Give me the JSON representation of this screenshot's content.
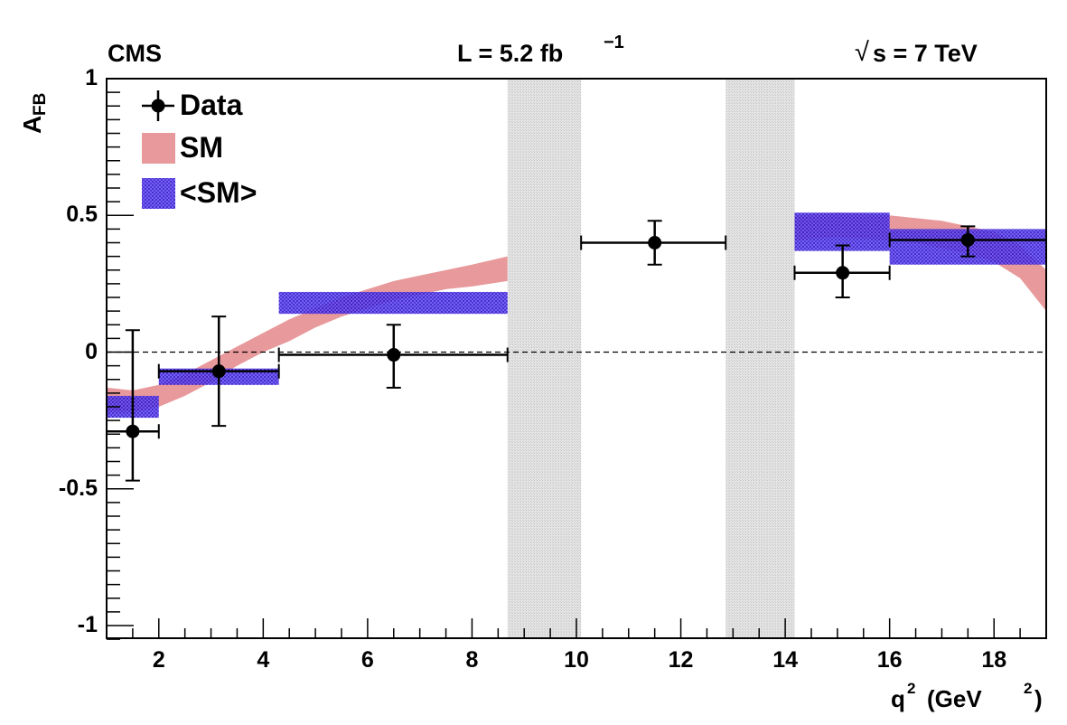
{
  "chart_data": {
    "type": "scatter",
    "header": {
      "experiment": "CMS",
      "luminosity": "L = 5.2 fb",
      "luminosity_exp": "−1",
      "energy_root": "√",
      "energy_text": "s = 7 TeV"
    },
    "xlabel": "q",
    "xlabel_exp": "2",
    "xlabel_units": "(GeV",
    "xlabel_units_exp": "2",
    "xlabel_close": ")",
    "ylabel": "A",
    "ylabel_sub": "FB",
    "xlim": [
      1,
      19
    ],
    "ylim": [
      -1.05,
      1.0
    ],
    "x_ticks": [
      2,
      4,
      6,
      8,
      10,
      12,
      14,
      16,
      18
    ],
    "x_tick_labels": [
      "2",
      "4",
      "6",
      "8",
      "10",
      "12",
      "14",
      "16",
      "18"
    ],
    "y_ticks": [
      1,
      0.5,
      0,
      -0.5,
      -1
    ],
    "y_tick_labels": [
      "1",
      "0.5",
      "0",
      "-0.5",
      "-1"
    ],
    "legend": [
      {
        "label": "Data",
        "marker": "point"
      },
      {
        "label": "SM",
        "marker": "band-pink"
      },
      {
        "label": "<SM>",
        "marker": "box-blue"
      }
    ],
    "vetoed_regions": [
      [
        8.68,
        10.09
      ],
      [
        12.86,
        14.18
      ]
    ],
    "data_points": [
      {
        "x": 1.5,
        "xlo": 1.0,
        "xhi": 2.0,
        "y": -0.29,
        "ylo": -0.47,
        "yhi": 0.08
      },
      {
        "x": 3.15,
        "xlo": 2.0,
        "xhi": 4.3,
        "y": -0.07,
        "ylo": -0.27,
        "yhi": 0.13
      },
      {
        "x": 6.5,
        "xlo": 4.3,
        "xhi": 8.68,
        "y": -0.01,
        "ylo": -0.13,
        "yhi": 0.1
      },
      {
        "x": 11.5,
        "xlo": 10.09,
        "xhi": 12.86,
        "y": 0.4,
        "ylo": 0.32,
        "yhi": 0.48
      },
      {
        "x": 15.1,
        "xlo": 14.18,
        "xhi": 16.0,
        "y": 0.29,
        "ylo": 0.2,
        "yhi": 0.39
      },
      {
        "x": 17.5,
        "xlo": 16.0,
        "xhi": 19.0,
        "y": 0.41,
        "ylo": 0.35,
        "yhi": 0.46
      }
    ],
    "sm_binned": [
      {
        "xlo": 1.0,
        "xhi": 2.0,
        "ylo": -0.24,
        "yhi": -0.16
      },
      {
        "xlo": 2.0,
        "xhi": 4.3,
        "ylo": -0.12,
        "yhi": -0.06
      },
      {
        "xlo": 4.3,
        "xhi": 8.68,
        "ylo": 0.14,
        "yhi": 0.22
      },
      {
        "xlo": 14.18,
        "xhi": 16.0,
        "ylo": 0.37,
        "yhi": 0.51
      },
      {
        "xlo": 16.0,
        "xhi": 19.0,
        "ylo": 0.32,
        "yhi": 0.45
      }
    ],
    "sm_curve_1": {
      "x": [
        1.0,
        1.5,
        2.0,
        2.5,
        3.0,
        3.5,
        4.0,
        4.5,
        5.0,
        5.5,
        6.0,
        6.5,
        7.0,
        7.5,
        8.0,
        8.68
      ],
      "lo": [
        -0.22,
        -0.22,
        -0.2,
        -0.16,
        -0.11,
        -0.05,
        0.0,
        0.04,
        0.09,
        0.13,
        0.16,
        0.19,
        0.21,
        0.23,
        0.24,
        0.26
      ],
      "hi": [
        -0.13,
        -0.14,
        -0.12,
        -0.08,
        -0.03,
        0.02,
        0.07,
        0.12,
        0.16,
        0.2,
        0.23,
        0.26,
        0.28,
        0.3,
        0.32,
        0.35
      ]
    },
    "sm_curve_2": {
      "x": [
        14.18,
        15.0,
        16.0,
        16.5,
        17.0,
        17.5,
        18.0,
        18.5,
        19.0
      ],
      "lo": [
        0.41,
        0.42,
        0.41,
        0.4,
        0.38,
        0.36,
        0.33,
        0.27,
        0.15
      ],
      "hi": [
        0.5,
        0.51,
        0.5,
        0.49,
        0.48,
        0.46,
        0.44,
        0.39,
        0.3
      ]
    },
    "colors": {
      "sm_band": "#e8999b",
      "sm_box": "#5a3ae8",
      "veto": "#dadada",
      "data": "#000000",
      "zero_line": "#000000"
    }
  }
}
